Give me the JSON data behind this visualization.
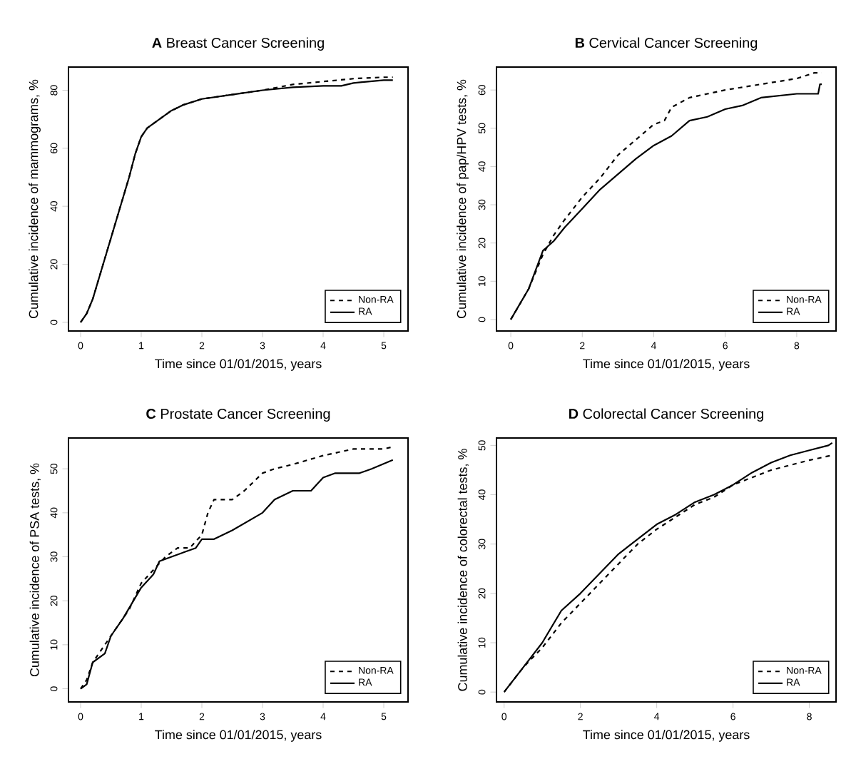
{
  "chart_data": [
    {
      "type": "line",
      "title": "**A** Breast Cancer Screening",
      "xlabel": "Time since 01/01/2015, years",
      "ylabel": "Cumulative incidence of mammograms, %",
      "xlim": [
        -0.2,
        5.4
      ],
      "ylim": [
        -3,
        88
      ],
      "xticks": [
        0,
        1,
        2,
        3,
        4,
        5
      ],
      "yticks": [
        0,
        20,
        40,
        60,
        80
      ],
      "legend": "bottom right",
      "grid": false,
      "series": [
        {
          "name": "Non-RA",
          "color": "#000000",
          "line_style": "dashed",
          "x": [
            0,
            0.1,
            0.2,
            0.4,
            0.6,
            0.8,
            0.9,
            1.0,
            1.1,
            1.3,
            1.5,
            1.7,
            2.0,
            2.5,
            3.0,
            3.5,
            4.0,
            4.5,
            5.0,
            5.15
          ],
          "values": [
            0,
            3,
            8,
            22,
            36,
            50,
            58,
            64,
            67,
            70,
            73,
            75,
            77,
            78.5,
            80,
            82,
            83,
            84,
            84.5,
            84.5
          ]
        },
        {
          "name": "RA",
          "color": "#000000",
          "line_style": "solid",
          "x": [
            0,
            0.1,
            0.2,
            0.4,
            0.6,
            0.8,
            0.9,
            1.0,
            1.1,
            1.3,
            1.5,
            1.7,
            2.0,
            2.5,
            3.0,
            3.5,
            4.0,
            4.3,
            4.5,
            5.0,
            5.15
          ],
          "values": [
            0,
            3,
            8,
            22,
            36,
            50,
            58,
            64,
            67,
            70,
            73,
            75,
            77,
            78.5,
            80,
            81,
            81.5,
            81.5,
            82.5,
            83.5,
            83.5
          ]
        }
      ]
    },
    {
      "type": "line",
      "title": "**B** Cervical Cancer Screening",
      "xlabel": "Time since 01/01/2015, years",
      "ylabel": "Cumulative incidence of pap/HPV tests, %",
      "xlim": [
        -0.4,
        9.1
      ],
      "ylim": [
        -3,
        66
      ],
      "xticks": [
        0,
        2,
        4,
        6,
        8
      ],
      "yticks": [
        0,
        10,
        20,
        30,
        40,
        50,
        60
      ],
      "legend": "bottom right",
      "grid": false,
      "series": [
        {
          "name": "Non-RA",
          "color": "#000000",
          "line_style": "dashed",
          "x": [
            0,
            0.5,
            0.9,
            1.2,
            1.5,
            2,
            2.5,
            3,
            3.5,
            4,
            4.3,
            4.5,
            5,
            5.5,
            6,
            7,
            8,
            8.5,
            8.7
          ],
          "values": [
            0,
            8,
            17,
            22,
            26,
            32,
            37,
            43,
            47,
            51,
            52,
            55.5,
            58,
            59,
            60,
            61.5,
            63,
            64.5,
            64.5
          ]
        },
        {
          "name": "RA",
          "color": "#000000",
          "line_style": "solid",
          "x": [
            0,
            0.5,
            0.9,
            1.2,
            1.5,
            2,
            2.5,
            3,
            3.5,
            4,
            4.5,
            5,
            5.5,
            6,
            6.5,
            7,
            8,
            8.6,
            8.65,
            8.7
          ],
          "values": [
            0,
            8,
            18,
            20.5,
            24,
            29,
            34,
            38,
            42,
            45.5,
            48,
            52,
            53,
            55,
            56,
            58,
            59,
            59,
            61.5,
            61.5
          ]
        }
      ]
    },
    {
      "type": "line",
      "title": "**C** Prostate Cancer Screening",
      "xlabel": "Time since 01/01/2015, years",
      "ylabel": "Cumulative incidence of PSA tests, %",
      "xlim": [
        -0.2,
        5.4
      ],
      "ylim": [
        -3,
        57
      ],
      "xticks": [
        0,
        1,
        2,
        3,
        4,
        5
      ],
      "yticks": [
        0,
        10,
        20,
        30,
        40,
        50
      ],
      "legend": "bottom right",
      "grid": false,
      "series": [
        {
          "name": "Non-RA",
          "color": "#000000",
          "line_style": "dashed",
          "x": [
            0,
            0.1,
            0.2,
            0.4,
            0.6,
            0.8,
            1.0,
            1.2,
            1.4,
            1.6,
            1.8,
            2.0,
            2.1,
            2.2,
            2.5,
            2.7,
            3,
            3.2,
            3.5,
            4,
            4.5,
            5.0,
            5.15
          ],
          "values": [
            0,
            2,
            6,
            10,
            14,
            18,
            24,
            27,
            30,
            32,
            32,
            35,
            40,
            43,
            43,
            45,
            49,
            50,
            51,
            53,
            54.5,
            54.5,
            55
          ]
        },
        {
          "name": "RA",
          "color": "#000000",
          "line_style": "solid",
          "x": [
            0,
            0.1,
            0.2,
            0.4,
            0.5,
            0.7,
            1.0,
            1.2,
            1.3,
            1.5,
            1.7,
            1.9,
            2.0,
            2.2,
            2.5,
            3,
            3.2,
            3.5,
            3.8,
            4.0,
            4.2,
            4.6,
            4.8,
            5.15
          ],
          "values": [
            0,
            1,
            6,
            8,
            12,
            16,
            23,
            26,
            29,
            30,
            31,
            32,
            34,
            34,
            36,
            40,
            43,
            45,
            45,
            48,
            49,
            49,
            50,
            52
          ]
        }
      ]
    },
    {
      "type": "line",
      "title": "**D** Colorectal Cancer Screening",
      "xlabel": "Time since 01/01/2015, years",
      "ylabel": "Cumulative incidence of colorectal tests, %",
      "xlim": [
        -0.2,
        8.7
      ],
      "ylim": [
        -2,
        51.5
      ],
      "xticks": [
        0,
        2,
        4,
        6,
        8
      ],
      "yticks": [
        0,
        10,
        20,
        30,
        40,
        50
      ],
      "legend": "bottom right",
      "grid": false,
      "series": [
        {
          "name": "Non-RA",
          "color": "#000000",
          "line_style": "dashed",
          "x": [
            0,
            0.5,
            1,
            1.5,
            2,
            2.5,
            3,
            3.5,
            4,
            4.5,
            5,
            5.5,
            6,
            6.5,
            7,
            7.5,
            8,
            8.6
          ],
          "values": [
            0,
            5,
            9,
            14,
            18,
            22,
            26,
            30,
            33,
            35.5,
            38,
            39.5,
            42,
            43.5,
            45,
            46,
            47,
            48
          ]
        },
        {
          "name": "RA",
          "color": "#000000",
          "line_style": "solid",
          "x": [
            0,
            0.5,
            1,
            1.5,
            2,
            2.5,
            3,
            3.5,
            4,
            4.5,
            5,
            5.5,
            6,
            6.5,
            7,
            7.5,
            8,
            8.5,
            8.6
          ],
          "values": [
            0,
            5,
            10,
            16.5,
            20,
            24,
            28,
            31,
            34,
            36,
            38.5,
            40,
            42,
            44.5,
            46.5,
            48,
            49,
            50,
            50.5
          ]
        }
      ]
    }
  ]
}
